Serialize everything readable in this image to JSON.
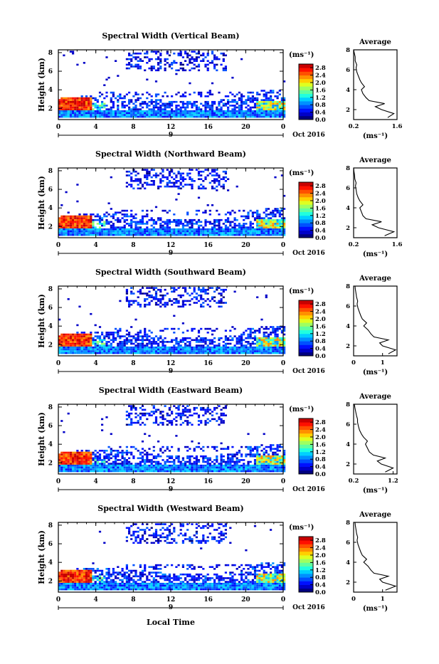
{
  "x_axis_label": "Local Time",
  "date_label": "Oct 2016",
  "day_label": "9",
  "colorbar_unit": "(ms⁻¹)",
  "avg_unit": "(ms⁻¹)",
  "avg_title": "Average",
  "colorbar_ticks": [
    "0.0",
    "0.4",
    "0.8",
    "1.2",
    "1.6",
    "2.0",
    "2.4",
    "2.8"
  ],
  "colorbar_colors": [
    "#00007f",
    "#0000c8",
    "#0010ff",
    "#0050ff",
    "#0090ff",
    "#00d0ff",
    "#20ffdf",
    "#60ff9f",
    "#9fff60",
    "#dfff20",
    "#ffd000",
    "#ff9000",
    "#ff5000",
    "#ff1000",
    "#c80000"
  ],
  "chart_data": [
    {
      "type": "heatmap",
      "title": "Spectral Width (Vertical Beam)",
      "xlabel": "",
      "ylabel": "Height (km)",
      "x_ticks": [
        "0",
        "4",
        "8",
        "12",
        "16",
        "20",
        "0"
      ],
      "xlim": [
        0,
        24
      ],
      "y_ticks": [
        "2",
        "4",
        "6",
        "8"
      ],
      "ylim": [
        0.8,
        8.3
      ],
      "colorbar_range": [
        0,
        3.0
      ],
      "avg_profile": {
        "title": "Average",
        "xlim": [
          0.2,
          1.6
        ],
        "x_ticks": [
          "0.2",
          "1.6"
        ],
        "ylim": [
          1,
          8
        ],
        "y_ticks": [
          "2",
          "4",
          "6",
          "8"
        ],
        "x": [
          1.3,
          1.5,
          1.1,
          0.9,
          1.2,
          0.7,
          0.6,
          0.5,
          0.45,
          0.55,
          0.45,
          0.4,
          0.35,
          0.3,
          0.28,
          0.3,
          0.25,
          0.25,
          0.22,
          0.2
        ],
        "y": [
          1.2,
          1.6,
          2.0,
          2.3,
          2.6,
          2.9,
          3.2,
          3.6,
          4.0,
          4.3,
          4.7,
          5.0,
          5.4,
          5.8,
          6.2,
          6.5,
          6.9,
          7.3,
          7.7,
          8.0
        ]
      }
    },
    {
      "type": "heatmap",
      "title": "Spectral Width (Northward Beam)",
      "xlabel": "",
      "ylabel": "Height (km)",
      "x_ticks": [
        "0",
        "4",
        "8",
        "12",
        "16",
        "20",
        "0"
      ],
      "xlim": [
        0,
        24
      ],
      "y_ticks": [
        "2",
        "4",
        "6",
        "8"
      ],
      "ylim": [
        0.8,
        8.3
      ],
      "colorbar_range": [
        0,
        3.0
      ],
      "avg_profile": {
        "title": "Average",
        "xlim": [
          0.2,
          1.6
        ],
        "x_ticks": [
          "0.2",
          "1.6"
        ],
        "ylim": [
          1,
          8
        ],
        "y_ticks": [
          "2",
          "4",
          "6",
          "8"
        ],
        "x": [
          1.2,
          1.5,
          1.0,
          0.8,
          1.1,
          0.6,
          0.5,
          0.45,
          0.4,
          0.5,
          0.4,
          0.35,
          0.3,
          0.28,
          0.26,
          0.28,
          0.24,
          0.23,
          0.21,
          0.2
        ],
        "y": [
          1.2,
          1.6,
          2.0,
          2.3,
          2.6,
          2.9,
          3.2,
          3.6,
          4.0,
          4.3,
          4.7,
          5.0,
          5.4,
          5.8,
          6.2,
          6.5,
          6.9,
          7.3,
          7.7,
          8.0
        ]
      }
    },
    {
      "type": "heatmap",
      "title": "Spectral Width (Southward Beam)",
      "xlabel": "",
      "ylabel": "Height (km)",
      "x_ticks": [
        "0",
        "4",
        "8",
        "12",
        "16",
        "20",
        "0"
      ],
      "xlim": [
        0,
        24
      ],
      "y_ticks": [
        "2",
        "4",
        "6",
        "8"
      ],
      "ylim": [
        0.8,
        8.3
      ],
      "colorbar_range": [
        0,
        3.0
      ],
      "avg_profile": {
        "title": "Average",
        "xlim": [
          0,
          1.5
        ],
        "x_ticks": [
          "0",
          "1"
        ],
        "ylim": [
          1,
          8
        ],
        "y_ticks": [
          "2",
          "4",
          "6",
          "8"
        ],
        "x": [
          1.2,
          1.45,
          1.0,
          0.9,
          1.2,
          0.7,
          0.6,
          0.5,
          0.35,
          0.45,
          0.3,
          0.25,
          0.2,
          0.15,
          0.12,
          0.14,
          0.1,
          0.08,
          0.06,
          0.05
        ],
        "y": [
          1.2,
          1.6,
          2.0,
          2.3,
          2.6,
          2.9,
          3.2,
          3.6,
          4.0,
          4.3,
          4.7,
          5.0,
          5.4,
          5.8,
          6.2,
          6.5,
          6.9,
          7.3,
          7.7,
          8.0
        ]
      }
    },
    {
      "type": "heatmap",
      "title": "Spectral Width (Eastward Beam)",
      "xlabel": "",
      "ylabel": "Height (km)",
      "x_ticks": [
        "0",
        "4",
        "8",
        "12",
        "16",
        "20",
        "0"
      ],
      "xlim": [
        0,
        24
      ],
      "y_ticks": [
        "2",
        "4",
        "6",
        "8"
      ],
      "ylim": [
        0.8,
        8.3
      ],
      "colorbar_range": [
        0,
        3.0
      ],
      "avg_profile": {
        "title": "Average",
        "xlim": [
          0.2,
          1.3
        ],
        "x_ticks": [
          "0.2",
          "1.2"
        ],
        "ylim": [
          1,
          8
        ],
        "y_ticks": [
          "2",
          "4",
          "6",
          "8"
        ],
        "x": [
          1.0,
          1.2,
          0.9,
          0.8,
          1.0,
          0.7,
          0.6,
          0.55,
          0.5,
          0.55,
          0.45,
          0.4,
          0.35,
          0.32,
          0.3,
          0.3,
          0.27,
          0.25,
          0.23,
          0.22
        ],
        "y": [
          1.2,
          1.6,
          2.0,
          2.3,
          2.6,
          2.9,
          3.2,
          3.6,
          4.0,
          4.3,
          4.7,
          5.0,
          5.4,
          5.8,
          6.2,
          6.5,
          6.9,
          7.3,
          7.7,
          8.0
        ]
      }
    },
    {
      "type": "heatmap",
      "title": "Spectral Width (Westward Beam)",
      "xlabel": "Local Time",
      "ylabel": "Height (km)",
      "x_ticks": [
        "0",
        "4",
        "8",
        "12",
        "16",
        "20",
        "0"
      ],
      "xlim": [
        0,
        24
      ],
      "y_ticks": [
        "2",
        "4",
        "6",
        "8"
      ],
      "ylim": [
        0.8,
        8.3
      ],
      "colorbar_range": [
        0,
        3.0
      ],
      "avg_profile": {
        "title": "Average",
        "xlim": [
          0,
          1.5
        ],
        "x_ticks": [
          "0",
          "1"
        ],
        "ylim": [
          1,
          8
        ],
        "y_ticks": [
          "2",
          "4",
          "6",
          "8"
        ],
        "x": [
          1.1,
          1.45,
          1.0,
          0.9,
          1.2,
          0.7,
          0.6,
          0.5,
          0.35,
          0.45,
          0.3,
          0.25,
          0.2,
          0.15,
          0.12,
          0.14,
          0.1,
          0.08,
          0.06,
          0.05
        ],
        "y": [
          1.2,
          1.6,
          2.0,
          2.3,
          2.6,
          2.9,
          3.2,
          3.6,
          4.0,
          4.3,
          4.7,
          5.0,
          5.4,
          5.8,
          6.2,
          6.5,
          6.9,
          7.3,
          7.7,
          8.0
        ]
      }
    }
  ]
}
